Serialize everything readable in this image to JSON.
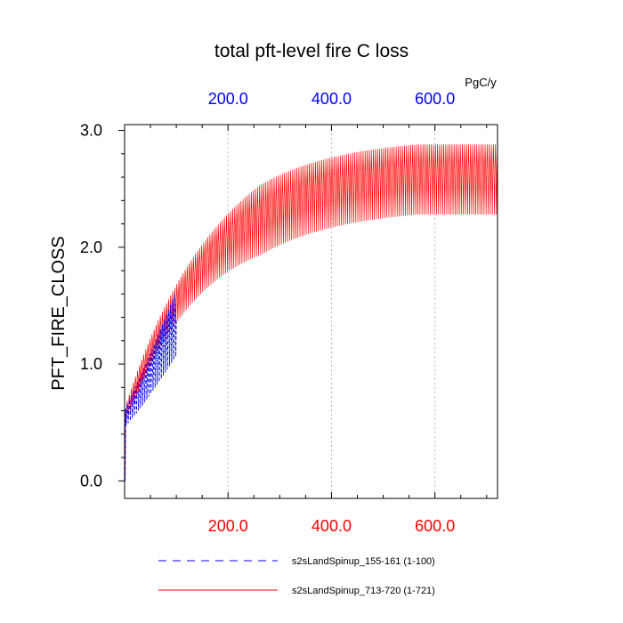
{
  "chart_data": {
    "type": "line",
    "title": "total pft-level fire C loss",
    "units": "PgC/y",
    "ylabel": "PFT_FIRE_CLOSS",
    "xlim": [
      0,
      721
    ],
    "ylim": [
      -0.15,
      3.05
    ],
    "x_ticks": [
      200,
      400,
      600
    ],
    "x_tick_labels": [
      "200.0",
      "400.0",
      "600.0"
    ],
    "y_ticks": [
      0,
      1,
      2,
      3
    ],
    "y_tick_labels": [
      "0.0",
      "1.0",
      "2.0",
      "3.0"
    ],
    "top_axis_color": "#0000ff",
    "bottom_axis_color": "#ff0000",
    "grid": "vertical dotted",
    "series": [
      {
        "name": "s2sLandSpinup_155-161 (1-100)",
        "color": "#0000ff",
        "dash": "dashed",
        "x_range": [
          1,
          100
        ],
        "period": 4,
        "initial_mean": 0.55,
        "final_mean": 1.35,
        "initial_amplitude": 0.08,
        "final_amplitude": 0.28,
        "start_value": 0.0
      },
      {
        "name": "s2sLandSpinup_713-720 (1-721)",
        "color": "#ff0000",
        "dash": "solid",
        "x_range": [
          1,
          721
        ],
        "period": 4,
        "asymptote_mean": 2.58,
        "early_mean": 0.55,
        "final_mean": 2.58,
        "final_amplitude": 0.3,
        "start_value": 0.0
      }
    ]
  }
}
